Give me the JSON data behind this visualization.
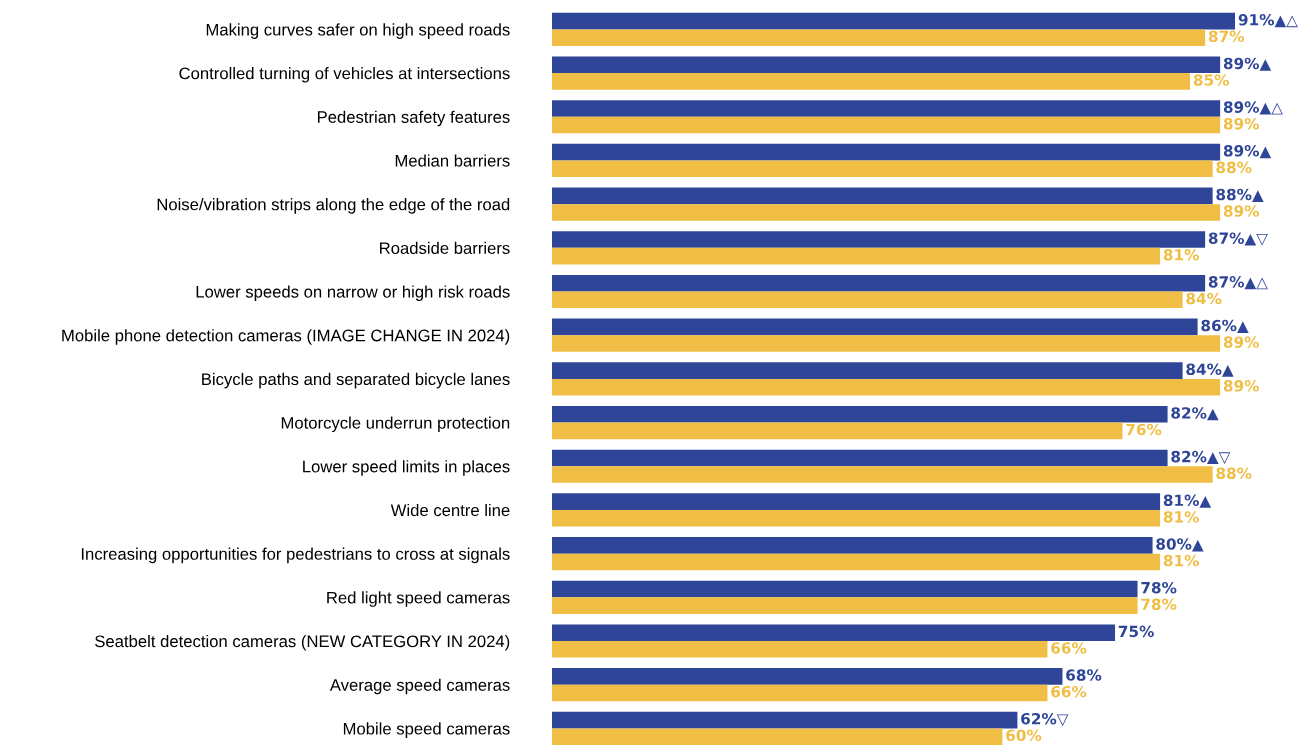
{
  "chart_data": {
    "type": "bar",
    "orientation": "horizontal",
    "data_labels": true,
    "tick_labels": "y",
    "grid": false,
    "legend": false,
    "categories": [
      "Making curves safer on high speed roads",
      "Controlled turning of vehicles at intersections",
      "Pedestrian safety features",
      "Median barriers",
      "Noise/vibration strips along the edge of the road",
      "Roadside barriers",
      "Lower speeds on narrow or high risk roads",
      "Mobile phone detection cameras (IMAGE CHANGE IN 2024)",
      "Bicycle paths and separated bicycle lanes",
      "Motorcycle underrun protection",
      "Lower speed limits in places",
      "Wide centre line",
      "Increasing opportunities for pedestrians to cross at signals",
      "Red light speed cameras",
      "Seatbelt detection cameras (NEW CATEGORY IN 2024)",
      "Average speed cameras",
      "Mobile speed cameras"
    ],
    "series": [
      {
        "color": "#2e4598",
        "values": [
          91,
          89,
          89,
          89,
          88,
          87,
          87,
          86,
          84,
          82,
          82,
          81,
          80,
          78,
          75,
          68,
          62
        ],
        "value_labels": [
          "91%▲△",
          "89%▲",
          "89%▲△",
          "89%▲",
          "88%▲",
          "87%▲▽",
          "87%▲△",
          "86%▲",
          "84%▲",
          "82%▲",
          "82%▲▽",
          "81%▲",
          "80%▲",
          "78%",
          "75%",
          "68%",
          "62%▽"
        ]
      },
      {
        "color": "#f0be45",
        "values": [
          87,
          85,
          89,
          88,
          89,
          81,
          84,
          89,
          89,
          76,
          88,
          81,
          81,
          78,
          66,
          66,
          60
        ],
        "value_labels": [
          "87%",
          "85%",
          "89%",
          "88%",
          "89%",
          "81%",
          "84%",
          "89%",
          "89%",
          "76%",
          "88%",
          "81%",
          "81%",
          "78%",
          "66%",
          "66%",
          "60%"
        ]
      }
    ]
  }
}
